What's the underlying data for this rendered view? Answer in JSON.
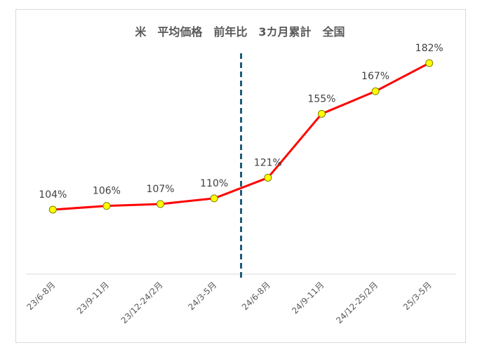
{
  "chart_data": {
    "type": "line",
    "title": "米　平均価格　前年比　3カ月累計　全国",
    "categories": [
      "23/6-8月",
      "23/9-11月",
      "23/12-24/2月",
      "24/3-5月",
      "24/6-8月",
      "24/9-11月",
      "24/12-25/2月",
      "25/3-5月"
    ],
    "values": [
      104,
      106,
      107,
      110,
      121,
      155,
      167,
      182
    ],
    "data_labels": [
      "104%",
      "106%",
      "107%",
      "110%",
      "121%",
      "155%",
      "167%",
      "182%"
    ],
    "divider_between": [
      "24/3-5月",
      "24/6-8月"
    ],
    "grid": false,
    "legend": "none"
  },
  "colors": {
    "line": "#ff0000",
    "marker_fill": "#ffff00",
    "marker_stroke": "#808000",
    "divider": "#1f5c7a",
    "axis": "#d9d9d9",
    "title": "#595959"
  }
}
